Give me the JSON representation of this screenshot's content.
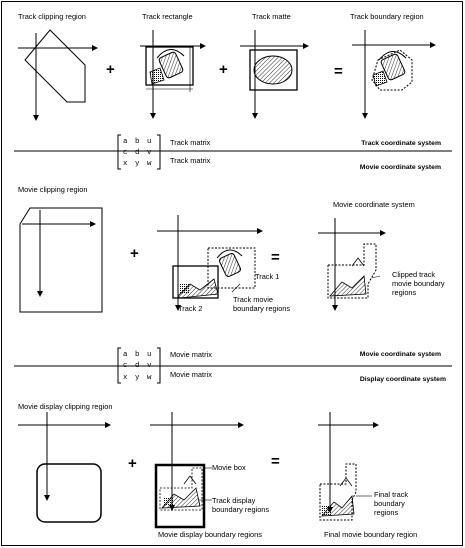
{
  "row1": {
    "labels": [
      "Track clipping region",
      "Track rectangle",
      "Track matte",
      "Track boundary region"
    ],
    "operators": [
      "+",
      "+",
      "="
    ]
  },
  "matrix1": {
    "cells": [
      [
        "a",
        "b",
        "u"
      ],
      [
        "c",
        "d",
        "v"
      ],
      [
        "x",
        "y",
        "w"
      ]
    ],
    "upper_label": "Track matrix",
    "lower_label": "Track matrix",
    "upper_system": "Track coordinate system",
    "lower_system": "Movie coordinate system"
  },
  "row2": {
    "left_label": "Movie clipping region",
    "right_label": "Movie coordinate system",
    "operators": [
      "+",
      "="
    ],
    "track1": "Track 1",
    "track2": "Track 2",
    "track_movie_boundary": [
      "Track movie",
      "boundary regions"
    ],
    "clipped_track": [
      "Clipped track",
      "movie boundary",
      "regions"
    ]
  },
  "matrix2": {
    "cells": [
      [
        "a",
        "b",
        "u"
      ],
      [
        "c",
        "d",
        "v"
      ],
      [
        "x",
        "y",
        "w"
      ]
    ],
    "upper_label": "Movie matrix",
    "lower_label": "Movie matrix",
    "upper_system": "Movie coordinate system",
    "lower_system": "Display coordinate system"
  },
  "row3": {
    "left_label": "Movie display clipping region",
    "operators": [
      "+",
      "="
    ],
    "movie_box": "Movie box",
    "track_display": [
      "Track display",
      "boundary regions"
    ],
    "movie_display_boundary": "Movie display boundary regions",
    "final_track": [
      "Final track",
      "boundary",
      "regions"
    ],
    "final_movie": "Final movie boundary region"
  },
  "colors": {
    "frame": "#000000",
    "line": "#000000",
    "background": "#ffffff"
  }
}
